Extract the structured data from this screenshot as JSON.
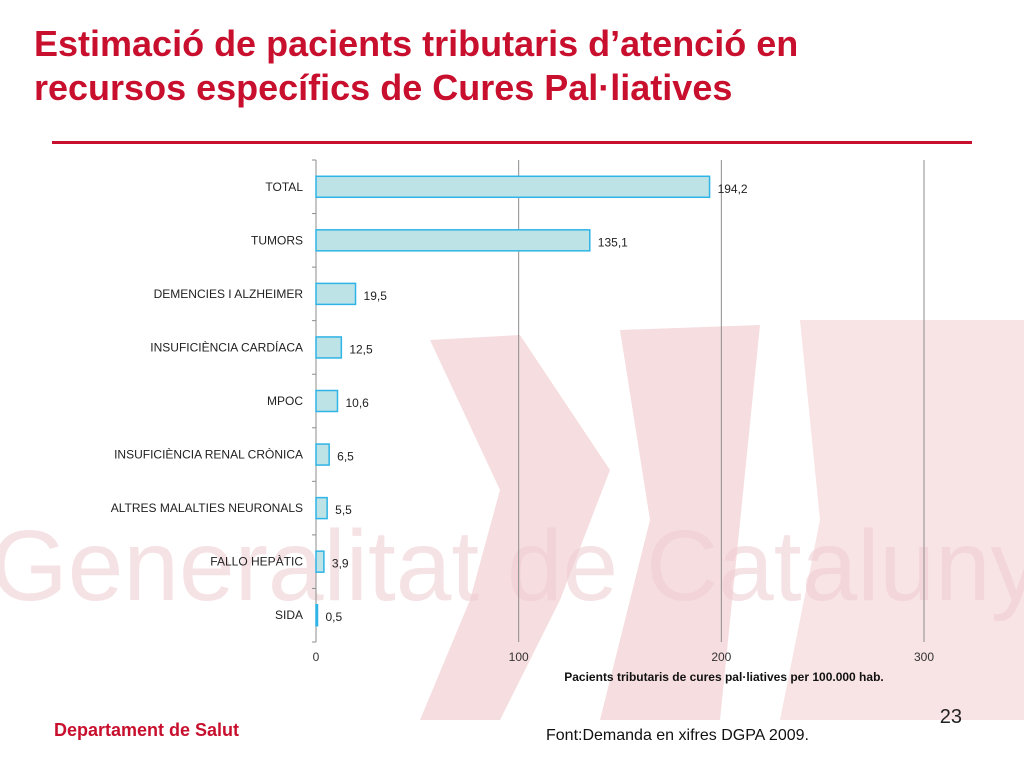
{
  "slide": {
    "title_line1": "Estimació  de pacients tributaris d’atenció en",
    "title_line2": "recursos específics de Cures Pal·liatives",
    "number": "23",
    "department": "Departament de Salut",
    "source": "Font:Demanda en xifres DGPA 2009.",
    "watermark_text": "Generalitat de Catalunya"
  },
  "colors": {
    "title": "#c8102e",
    "bar_fill": "#bde3e6",
    "bar_stroke": "#2eb4e6",
    "grid": "#8c8c8c",
    "watermark": "#f4d3d7"
  },
  "chart_data": {
    "type": "bar",
    "orientation": "horizontal",
    "categories": [
      "TOTAL",
      "TUMORS",
      "DEMENCIES I ALZHEIMER",
      "INSUFICIÈNCIA CARDÍACA",
      "MPOC",
      "INSUFICIÈNCIA RENAL CRÒNICA",
      "ALTRES MALALTIES NEURONALS",
      "FALLO HEPÀTIC",
      "SIDA"
    ],
    "values": [
      194.2,
      135.1,
      19.5,
      12.5,
      10.6,
      6.5,
      5.5,
      3.9,
      0.5
    ],
    "value_labels": [
      "194,2",
      "135,1",
      "19,5",
      "12,5",
      "10,6",
      "6,5",
      "5,5",
      "3,9",
      "0,5"
    ],
    "xlabel": "Pacients tributaris de cures pal·liatives  per 100.000 hab.",
    "xlim": [
      0,
      300
    ],
    "xticks": [
      0,
      100,
      200,
      300
    ],
    "grid": "vertical",
    "legend": "none"
  }
}
